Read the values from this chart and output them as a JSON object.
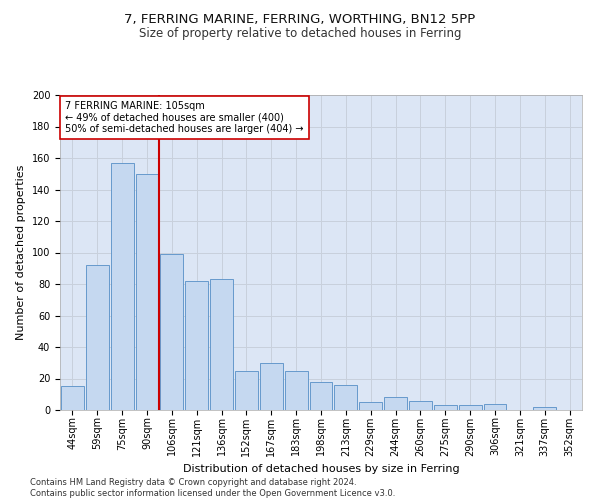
{
  "title1": "7, FERRING MARINE, FERRING, WORTHING, BN12 5PP",
  "title2": "Size of property relative to detached houses in Ferring",
  "xlabel": "Distribution of detached houses by size in Ferring",
  "ylabel": "Number of detached properties",
  "categories": [
    "44sqm",
    "59sqm",
    "75sqm",
    "90sqm",
    "106sqm",
    "121sqm",
    "136sqm",
    "152sqm",
    "167sqm",
    "183sqm",
    "198sqm",
    "213sqm",
    "229sqm",
    "244sqm",
    "260sqm",
    "275sqm",
    "290sqm",
    "306sqm",
    "321sqm",
    "337sqm",
    "352sqm"
  ],
  "values": [
    15,
    92,
    157,
    150,
    99,
    82,
    83,
    25,
    30,
    25,
    18,
    16,
    5,
    8,
    6,
    3,
    3,
    4,
    0,
    2,
    0
  ],
  "bar_color": "#c5d8f0",
  "bar_edge_color": "#6699cc",
  "vline_index": 3.5,
  "vline_color": "#cc0000",
  "annotation_text": "7 FERRING MARINE: 105sqm\n← 49% of detached houses are smaller (400)\n50% of semi-detached houses are larger (404) →",
  "annotation_box_color": "#ffffff",
  "annotation_box_edge": "#cc0000",
  "ylim": [
    0,
    200
  ],
  "yticks": [
    0,
    20,
    40,
    60,
    80,
    100,
    120,
    140,
    160,
    180,
    200
  ],
  "grid_color": "#c8d0dc",
  "bg_color": "#dce6f5",
  "footnote": "Contains HM Land Registry data © Crown copyright and database right 2024.\nContains public sector information licensed under the Open Government Licence v3.0.",
  "title1_fontsize": 9.5,
  "title2_fontsize": 8.5,
  "xlabel_fontsize": 8,
  "ylabel_fontsize": 8,
  "tick_fontsize": 7,
  "annot_fontsize": 7,
  "footnote_fontsize": 6
}
